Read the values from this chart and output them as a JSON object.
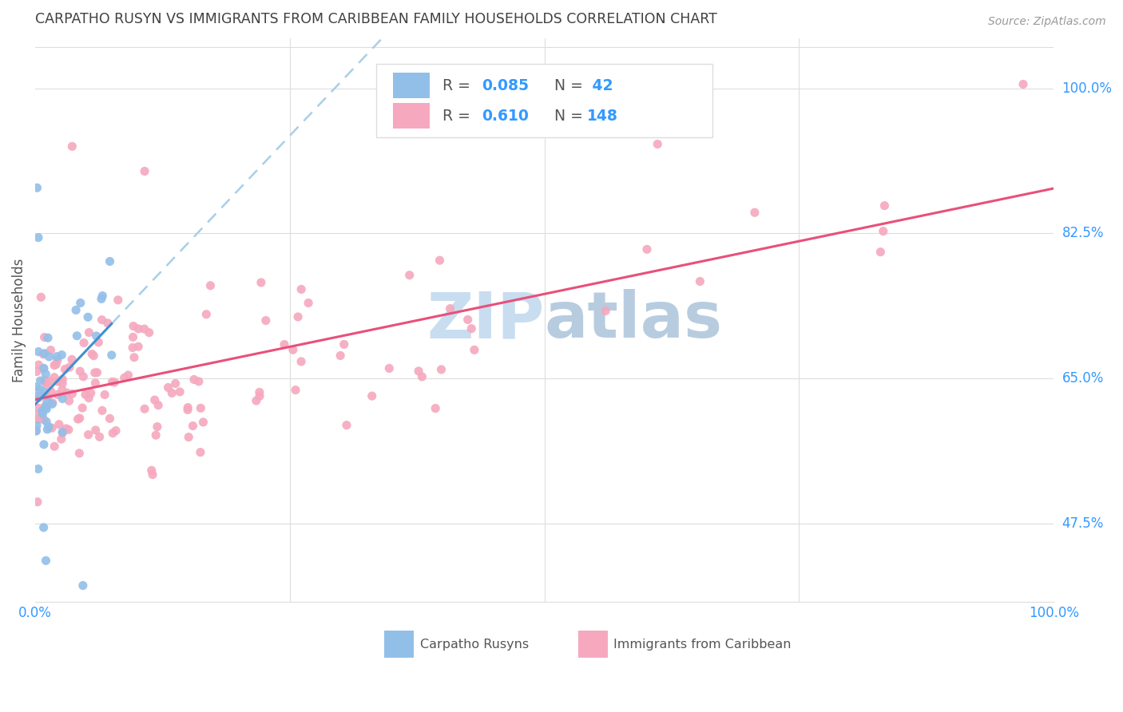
{
  "title": "CARPATHO RUSYN VS IMMIGRANTS FROM CARIBBEAN FAMILY HOUSEHOLDS CORRELATION CHART",
  "source": "Source: ZipAtlas.com",
  "ylabel": "Family Households",
  "ytick_labels": [
    "47.5%",
    "65.0%",
    "82.5%",
    "100.0%"
  ],
  "ytick_values": [
    0.475,
    0.65,
    0.825,
    1.0
  ],
  "ymin": 0.38,
  "ymax": 1.06,
  "legend_text_r1": "R = ",
  "legend_val_r1": "0.085",
  "legend_text_n1": "N = ",
  "legend_val_n1": " 42",
  "legend_text_r2": "R = ",
  "legend_val_r2": "0.610",
  "legend_text_n2": "N = ",
  "legend_val_n2": "148",
  "color_blue_scatter": "#92bfe8",
  "color_pink_scatter": "#f5a8be",
  "color_blue_line": "#4090d0",
  "color_pink_line": "#e8507a",
  "color_blue_dashed": "#a8cfe8",
  "watermark_zip_color": "#c8ddf0",
  "watermark_atlas_color": "#b8cce0",
  "title_color": "#404040",
  "axis_label_color": "#3399ff",
  "grid_color": "#dddddd",
  "background_color": "#ffffff",
  "legend_r_color": "#555555",
  "legend_n_color": "#555555",
  "legend_val_color": "#3399ff"
}
